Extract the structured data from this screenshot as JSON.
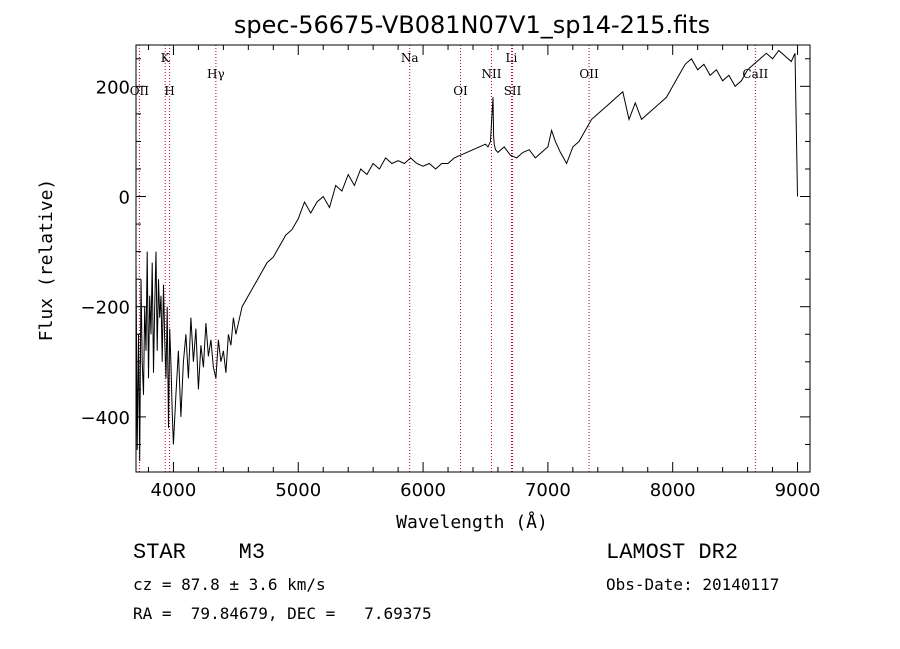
{
  "chart_data": {
    "type": "line",
    "title": "spec-56675-VB081N07V1_sp14-215.fits",
    "xlabel": "Wavelength (Å)",
    "ylabel": "Flux (relative)",
    "xlim": [
      3700,
      9100
    ],
    "ylim": [
      -500,
      275
    ],
    "xticks": [
      4000,
      5000,
      6000,
      7000,
      8000,
      9000
    ],
    "yticks": [
      -400,
      -200,
      0,
      200
    ],
    "grid": false,
    "series": [
      {
        "color": "#000000",
        "x": [
          3700,
          3710,
          3720,
          3730,
          3740,
          3750,
          3760,
          3770,
          3780,
          3790,
          3800,
          3810,
          3820,
          3830,
          3840,
          3850,
          3860,
          3870,
          3880,
          3890,
          3900,
          3910,
          3920,
          3930,
          3940,
          3950,
          3960,
          3970,
          3980,
          3990,
          4000,
          4020,
          4040,
          4060,
          4080,
          4100,
          4120,
          4140,
          4160,
          4180,
          4200,
          4220,
          4240,
          4260,
          4280,
          4300,
          4320,
          4340,
          4360,
          4380,
          4400,
          4420,
          4440,
          4460,
          4480,
          4500,
          4550,
          4600,
          4650,
          4700,
          4750,
          4800,
          4850,
          4900,
          4950,
          5000,
          5050,
          5100,
          5150,
          5200,
          5250,
          5300,
          5350,
          5400,
          5450,
          5500,
          5550,
          5600,
          5650,
          5700,
          5750,
          5800,
          5850,
          5900,
          5950,
          6000,
          6050,
          6100,
          6150,
          6200,
          6250,
          6300,
          6350,
          6400,
          6450,
          6500,
          6520,
          6540,
          6550,
          6560,
          6565,
          6570,
          6580,
          6600,
          6650,
          6700,
          6750,
          6800,
          6850,
          6900,
          6950,
          7000,
          7030,
          7060,
          7100,
          7150,
          7200,
          7250,
          7300,
          7350,
          7400,
          7450,
          7500,
          7550,
          7600,
          7650,
          7700,
          7750,
          7800,
          7850,
          7900,
          7950,
          8000,
          8050,
          8100,
          8150,
          8200,
          8250,
          8300,
          8350,
          8400,
          8450,
          8500,
          8550,
          8600,
          8650,
          8700,
          8750,
          8800,
          8850,
          8900,
          8950,
          8980,
          9000
        ],
        "y": [
          -120,
          -460,
          -250,
          -480,
          -150,
          -300,
          -360,
          -200,
          -280,
          -100,
          -330,
          -180,
          -250,
          -120,
          -320,
          -200,
          -100,
          -280,
          -150,
          -220,
          -180,
          -300,
          -160,
          -260,
          -330,
          -200,
          -420,
          -240,
          -300,
          -390,
          -450,
          -360,
          -280,
          -400,
          -300,
          -250,
          -330,
          -220,
          -300,
          -240,
          -350,
          -270,
          -310,
          -230,
          -290,
          -260,
          -310,
          -330,
          -260,
          -300,
          -280,
          -320,
          -250,
          -270,
          -220,
          -250,
          -200,
          -180,
          -160,
          -140,
          -120,
          -110,
          -90,
          -70,
          -60,
          -40,
          -10,
          -30,
          -10,
          0,
          -20,
          20,
          10,
          40,
          20,
          50,
          40,
          60,
          50,
          70,
          60,
          65,
          60,
          70,
          60,
          55,
          60,
          50,
          60,
          60,
          70,
          75,
          80,
          85,
          90,
          95,
          90,
          100,
          140,
          180,
          110,
          95,
          85,
          80,
          90,
          75,
          70,
          80,
          85,
          70,
          80,
          90,
          120,
          100,
          80,
          60,
          90,
          100,
          120,
          140,
          150,
          160,
          170,
          180,
          190,
          140,
          170,
          140,
          150,
          160,
          170,
          180,
          200,
          220,
          240,
          250,
          230,
          240,
          220,
          230,
          210,
          220,
          200,
          210,
          230,
          240,
          250,
          260,
          250,
          265,
          255,
          245,
          260,
          0
        ]
      }
    ],
    "line_markers": [
      {
        "label": "OII",
        "x": 3727,
        "row": "low"
      },
      {
        "label": "K",
        "x": 3934,
        "row": "high"
      },
      {
        "label": "H",
        "x": 3969,
        "row": "low"
      },
      {
        "label": "Hγ",
        "x": 4340,
        "row": "mid"
      },
      {
        "label": "Na",
        "x": 5893,
        "row": "high"
      },
      {
        "label": "OI",
        "x": 6300,
        "row": "low"
      },
      {
        "label": "NII",
        "x": 6548,
        "row": "mid"
      },
      {
        "label": "Li",
        "x": 6708,
        "row": "high"
      },
      {
        "label": "SII",
        "x": 6717,
        "row": "low"
      },
      {
        "label": "OII",
        "x": 7330,
        "row": "mid"
      },
      {
        "label": "CaII",
        "x": 8662,
        "row": "mid"
      }
    ],
    "marker_color": "#b8001c"
  },
  "info": {
    "class_line": "STAR    M3",
    "survey": "LAMOST DR2",
    "cz": "cz = 87.8 ± 3.6 km/s",
    "obs_date": "Obs-Date: 20140117",
    "coords": "RA =  79.84679, DEC =   7.69375"
  }
}
